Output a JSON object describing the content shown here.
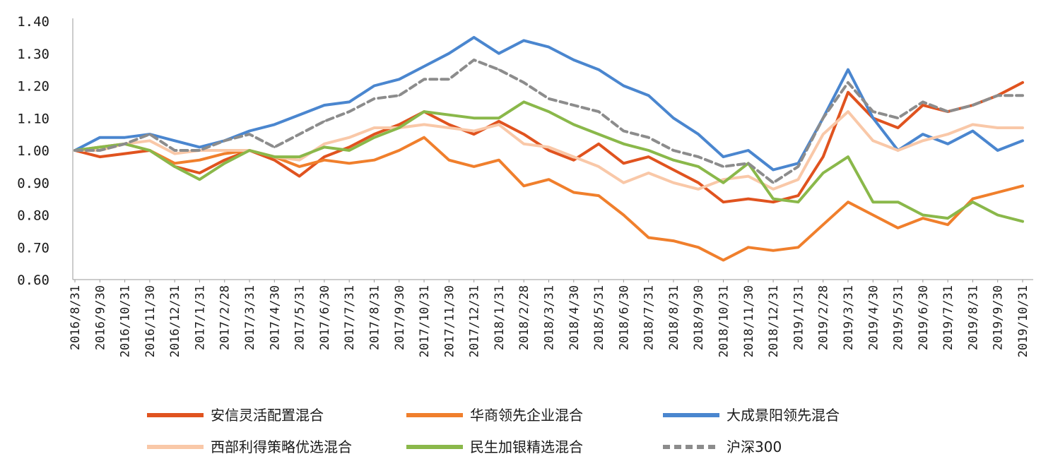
{
  "chart_data": {
    "type": "line",
    "title": "",
    "xlabel": "",
    "ylabel": "",
    "ylim": [
      0.6,
      1.4
    ],
    "y_ticks": [
      "1.40",
      "1.30",
      "1.20",
      "1.10",
      "1.00",
      "0.90",
      "0.80",
      "0.70",
      "0.60"
    ],
    "x": [
      "2016/8/31",
      "2016/9/30",
      "2016/10/31",
      "2016/11/30",
      "2016/12/31",
      "2017/1/31",
      "2017/2/28",
      "2017/3/31",
      "2017/4/30",
      "2017/5/31",
      "2017/6/30",
      "2017/7/31",
      "2017/8/31",
      "2017/9/30",
      "2017/10/31",
      "2017/11/30",
      "2017/12/31",
      "2018/1/31",
      "2018/2/28",
      "2018/3/31",
      "2018/4/30",
      "2018/5/31",
      "2018/6/30",
      "2018/7/31",
      "2018/8/31",
      "2018/9/30",
      "2018/10/31",
      "2018/11/30",
      "2018/12/31",
      "2019/1/31",
      "2019/2/28",
      "2019/3/31",
      "2019/4/30",
      "2019/5/31",
      "2019/6/30",
      "2019/7/31",
      "2019/8/31",
      "2019/9/30",
      "2019/10/31"
    ],
    "grid": false,
    "legend_position": "bottom",
    "series": [
      {
        "name": "安信灵活配置混合",
        "color": "#e0531f",
        "style": "solid",
        "values": [
          1.0,
          0.98,
          0.99,
          1.0,
          0.95,
          0.93,
          0.97,
          1.0,
          0.97,
          0.92,
          0.98,
          1.01,
          1.05,
          1.08,
          1.12,
          1.08,
          1.05,
          1.09,
          1.05,
          1.0,
          0.97,
          1.02,
          0.96,
          0.98,
          0.94,
          0.9,
          0.84,
          0.85,
          0.84,
          0.86,
          0.98,
          1.18,
          1.1,
          1.07,
          1.14,
          1.12,
          1.14,
          1.17,
          1.21
        ]
      },
      {
        "name": "华商领先企业混合",
        "color": "#f07f2c",
        "style": "solid",
        "values": [
          1.0,
          1.01,
          1.02,
          1.0,
          0.96,
          0.97,
          0.99,
          1.0,
          0.98,
          0.95,
          0.97,
          0.96,
          0.97,
          1.0,
          1.04,
          0.97,
          0.95,
          0.97,
          0.89,
          0.91,
          0.87,
          0.86,
          0.8,
          0.73,
          0.72,
          0.7,
          0.66,
          0.7,
          0.69,
          0.7,
          0.77,
          0.84,
          0.8,
          0.76,
          0.79,
          0.77,
          0.85,
          0.87,
          0.89
        ]
      },
      {
        "name": "大成景阳领先混合",
        "color": "#4a86cf",
        "style": "solid",
        "values": [
          1.0,
          1.04,
          1.04,
          1.05,
          1.03,
          1.01,
          1.03,
          1.06,
          1.08,
          1.11,
          1.14,
          1.15,
          1.2,
          1.22,
          1.26,
          1.3,
          1.35,
          1.3,
          1.34,
          1.32,
          1.28,
          1.25,
          1.2,
          1.17,
          1.1,
          1.05,
          0.98,
          1.0,
          0.94,
          0.96,
          1.1,
          1.25,
          1.1,
          1.0,
          1.05,
          1.02,
          1.06,
          1.0,
          1.03
        ]
      },
      {
        "name": "西部利得策略优选混合",
        "color": "#f9c8a8",
        "style": "solid",
        "values": [
          1.0,
          1.0,
          1.02,
          1.03,
          0.99,
          1.0,
          1.0,
          1.0,
          0.98,
          0.97,
          1.02,
          1.04,
          1.07,
          1.07,
          1.08,
          1.07,
          1.06,
          1.08,
          1.02,
          1.01,
          0.98,
          0.95,
          0.9,
          0.93,
          0.9,
          0.88,
          0.91,
          0.92,
          0.88,
          0.91,
          1.05,
          1.12,
          1.03,
          1.0,
          1.03,
          1.05,
          1.08,
          1.07,
          1.07
        ]
      },
      {
        "name": "民生加银精选混合",
        "color": "#8ab84a",
        "style": "solid",
        "values": [
          1.0,
          1.01,
          1.02,
          1.0,
          0.95,
          0.91,
          0.96,
          1.0,
          0.98,
          0.98,
          1.01,
          1.0,
          1.04,
          1.07,
          1.12,
          1.11,
          1.1,
          1.1,
          1.15,
          1.12,
          1.08,
          1.05,
          1.02,
          1.0,
          0.97,
          0.95,
          0.9,
          0.96,
          0.85,
          0.84,
          0.93,
          0.98,
          0.84,
          0.84,
          0.8,
          0.79,
          0.84,
          0.8,
          0.78
        ]
      },
      {
        "name": "沪深300",
        "color": "#8c8c8c",
        "style": "dashed",
        "values": [
          1.0,
          1.0,
          1.02,
          1.05,
          1.0,
          1.0,
          1.03,
          1.05,
          1.01,
          1.05,
          1.09,
          1.12,
          1.16,
          1.17,
          1.22,
          1.22,
          1.28,
          1.25,
          1.21,
          1.16,
          1.14,
          1.12,
          1.06,
          1.04,
          1.0,
          0.98,
          0.95,
          0.96,
          0.9,
          0.95,
          1.1,
          1.21,
          1.12,
          1.1,
          1.15,
          1.12,
          1.14,
          1.17,
          1.17
        ]
      }
    ]
  }
}
